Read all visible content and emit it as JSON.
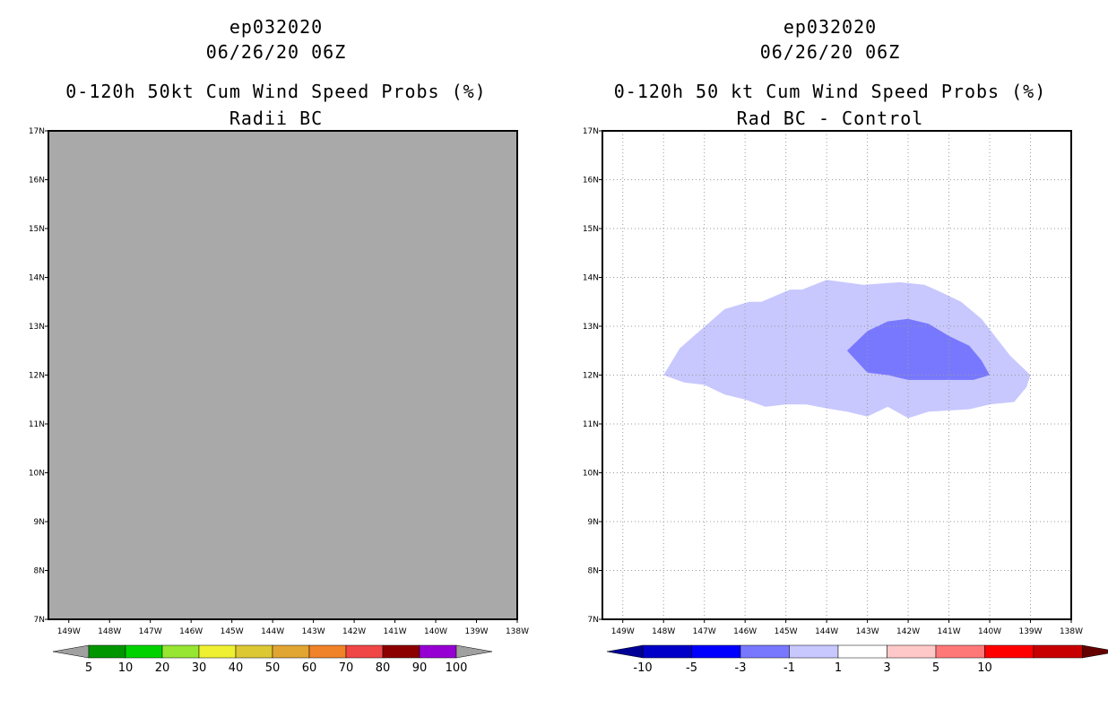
{
  "chart_data": [
    {
      "type": "heatmap",
      "storm_id": "ep032020",
      "datetime": "06/26/20 06Z",
      "title": "0-120h 50kt Cum Wind Speed Probs (%)",
      "subtitle": "Radii BC",
      "xlim": [
        -149.5,
        -138
      ],
      "ylim": [
        7,
        17
      ],
      "x_ticks": [
        "149W",
        "148W",
        "147W",
        "146W",
        "145W",
        "144W",
        "143W",
        "142W",
        "141W",
        "140W",
        "139W",
        "138W"
      ],
      "y_ticks": [
        "7N",
        "8N",
        "9N",
        "10N",
        "11N",
        "12N",
        "13N",
        "14N",
        "15N",
        "16N",
        "17N"
      ],
      "grid": false,
      "field": "no probabilities reported — entire domain shown as missing-data gray",
      "missing_color": "#a9a9a9",
      "colorbar": {
        "labels": [
          "5",
          "10",
          "20",
          "30",
          "40",
          "50",
          "60",
          "70",
          "80",
          "90",
          "100"
        ],
        "colors": [
          "#009600",
          "#00d200",
          "#96e632",
          "#f0f032",
          "#dcc832",
          "#e1a532",
          "#f08228",
          "#f04646",
          "#8c0000",
          "#9600d2"
        ],
        "end_color": "#a0a0a0"
      }
    },
    {
      "type": "heatmap",
      "storm_id": "ep032020",
      "datetime": "06/26/20 06Z",
      "title": "0-120h 50 kt Cum Wind Speed Probs (%)",
      "subtitle": "Rad BC - Control",
      "xlim": [
        -149.5,
        -138
      ],
      "ylim": [
        7,
        17
      ],
      "x_ticks": [
        "149W",
        "148W",
        "147W",
        "146W",
        "145W",
        "144W",
        "143W",
        "142W",
        "141W",
        "140W",
        "139W",
        "138W"
      ],
      "y_ticks": [
        "7N",
        "8N",
        "9N",
        "10N",
        "11N",
        "12N",
        "13N",
        "14N",
        "15N",
        "16N",
        "17N"
      ],
      "grid": true,
      "contours": [
        {
          "range": "-3 to -1",
          "color": "#c8c8ff",
          "points": [
            [
              -148.0,
              12.0
            ],
            [
              -147.6,
              12.55
            ],
            [
              -146.5,
              13.35
            ],
            [
              -145.9,
              13.5
            ],
            [
              -145.6,
              13.5
            ],
            [
              -144.9,
              13.75
            ],
            [
              -144.6,
              13.75
            ],
            [
              -144.0,
              13.95
            ],
            [
              -143.1,
              13.85
            ],
            [
              -142.2,
              13.9
            ],
            [
              -141.6,
              13.85
            ],
            [
              -141.2,
              13.7
            ],
            [
              -140.7,
              13.5
            ],
            [
              -140.2,
              13.15
            ],
            [
              -139.5,
              12.4
            ],
            [
              -139.0,
              12.0
            ],
            [
              -139.1,
              11.75
            ],
            [
              -139.4,
              11.45
            ],
            [
              -140.0,
              11.4
            ],
            [
              -140.5,
              11.3
            ],
            [
              -141.5,
              11.25
            ],
            [
              -142.0,
              11.12
            ],
            [
              -142.5,
              11.35
            ],
            [
              -143.0,
              11.15
            ],
            [
              -143.5,
              11.25
            ],
            [
              -144.0,
              11.32
            ],
            [
              -144.5,
              11.4
            ],
            [
              -145.0,
              11.4
            ],
            [
              -145.5,
              11.35
            ],
            [
              -146.0,
              11.5
            ],
            [
              -146.5,
              11.6
            ],
            [
              -147.0,
              11.8
            ],
            [
              -147.5,
              11.85
            ]
          ]
        },
        {
          "range": "-5 to -3",
          "color": "#7878ff",
          "points": [
            [
              -143.5,
              12.5
            ],
            [
              -143.0,
              12.9
            ],
            [
              -142.5,
              13.1
            ],
            [
              -142.0,
              13.15
            ],
            [
              -141.5,
              13.05
            ],
            [
              -141.0,
              12.8
            ],
            [
              -140.5,
              12.6
            ],
            [
              -140.2,
              12.3
            ],
            [
              -140.0,
              12.0
            ],
            [
              -140.4,
              11.9
            ],
            [
              -141.0,
              11.9
            ],
            [
              -142.0,
              11.9
            ],
            [
              -142.5,
              12.0
            ],
            [
              -143.0,
              12.05
            ]
          ]
        }
      ],
      "colorbar": {
        "labels": [
          "-10",
          "-5",
          "-3",
          "-1",
          "1",
          "3",
          "5",
          "10"
        ],
        "colors": [
          "#0000c8",
          "#0000ff",
          "#7878ff",
          "#c8c8ff",
          "#ffffff",
          "#ffc8c8",
          "#ff7878",
          "#ff0000",
          "#c80000"
        ],
        "left_end_color": "#000096",
        "right_end_color": "#640000"
      }
    }
  ]
}
